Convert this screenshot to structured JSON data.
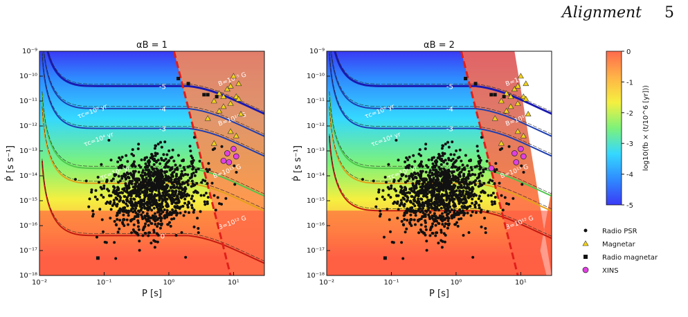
{
  "header": {
    "title": "Alignment",
    "page_number": "5"
  },
  "colors": {
    "radio_psr": "#111111",
    "magnetar": "#f2d21b",
    "radio_magnetar": "#111111",
    "xins": "#e040e0",
    "death_line": "#e0201a"
  },
  "colormap": [
    "#3a3af5",
    "#2f8bff",
    "#35d8ff",
    "#7df27a",
    "#f5f040",
    "#ffb347",
    "#ff6a4d"
  ],
  "colorbar": {
    "label": "log10(fb × (t/10^6 [yr]))",
    "ticks": [
      "0",
      "-1",
      "-2",
      "-3",
      "-4",
      "-5"
    ],
    "range": [
      -5,
      0
    ]
  },
  "legend": {
    "items": [
      {
        "label": "Radio PSR",
        "marker": "circle"
      },
      {
        "label": "Magnetar",
        "marker": "triangle"
      },
      {
        "label": "Radio magnetar",
        "marker": "square"
      },
      {
        "label": "XINS",
        "marker": "circle-large"
      }
    ]
  },
  "chart_data": [
    {
      "type": "heatmap",
      "title": "αB = 1",
      "xlabel": "P [s]",
      "ylabel": "Ṗ [s s⁻¹]",
      "xscale": "log",
      "yscale": "log",
      "xlim": [
        0.01,
        30
      ],
      "ylim": [
        1e-18,
        1e-09
      ],
      "x_ticks": [
        "10⁻²",
        "10⁻¹",
        "10⁰",
        "10¹"
      ],
      "y_ticks": [
        "10⁻¹⁸",
        "10⁻¹⁷",
        "10⁻¹⁶",
        "10⁻¹⁵",
        "10⁻¹⁴",
        "10⁻¹³",
        "10⁻¹²",
        "10⁻¹¹",
        "10⁻¹⁰",
        "10⁻⁹"
      ],
      "contour_levels": [
        {
          "level": "0",
          "p_label": 0.8,
          "pdot_plateau": 4e-17
        },
        {
          "level": "-1",
          "p_label": 0.8,
          "pdot_plateau": 5e-15
        },
        {
          "level": "-2",
          "p_label": 0.8,
          "pdot_plateau": 2e-14
        },
        {
          "level": "-3",
          "p_label": 0.8,
          "pdot_plateau": 8e-13
        },
        {
          "level": "-4",
          "p_label": 0.8,
          "pdot_plateau": 5e-12
        },
        {
          "level": "-5",
          "p_label": 0.8,
          "pdot_plateau": 4e-11
        }
      ],
      "annotations": [
        {
          "text": "τc=10⁶ yr",
          "x": 0.04,
          "y": 2e-12
        },
        {
          "text": "τc=10⁴ yr",
          "x": 0.05,
          "y": 1.5e-13
        },
        {
          "text": "τc=10⁸ yr",
          "x": 0.09,
          "y": 7e-15
        },
        {
          "text": "B=10¹⁵ G",
          "x": 6,
          "y": 4e-11
        },
        {
          "text": "B=10¹⁴ G",
          "x": 6,
          "y": 1e-12
        },
        {
          "text": "B=10¹³ G",
          "x": 5,
          "y": 8e-15
        },
        {
          "text": "B=10¹² G",
          "x": 6,
          "y": 7e-17
        }
      ],
      "magnetars": [
        [
          6,
          2e-11
        ],
        [
          8,
          3e-11
        ],
        [
          10,
          1e-10
        ],
        [
          12,
          5e-11
        ],
        [
          7,
          6e-12
        ],
        [
          9,
          8e-12
        ],
        [
          11,
          1.5e-11
        ],
        [
          5,
          1e-11
        ],
        [
          13,
          3e-12
        ],
        [
          4,
          2e-12
        ],
        [
          9,
          6e-13
        ],
        [
          11,
          4e-13
        ],
        [
          5,
          2e-13
        ],
        [
          7,
          1.5e-11
        ],
        [
          12,
          1.2e-11
        ],
        [
          9,
          4e-11
        ],
        [
          6,
          4e-12
        ]
      ],
      "radio_magnetars": [
        [
          1.4,
          8e-11
        ],
        [
          2,
          5e-11
        ],
        [
          3.5,
          1.8e-11
        ],
        [
          4,
          1.8e-11
        ],
        [
          5.5,
          1.5e-11
        ],
        [
          0.08,
          5e-18
        ],
        [
          1.1,
          2e-14
        ]
      ],
      "xins": [
        [
          8,
          8e-14
        ],
        [
          10,
          1.2e-13
        ],
        [
          11,
          6e-14
        ],
        [
          8.5,
          3.5e-14
        ],
        [
          7,
          4e-14
        ]
      ]
    },
    {
      "type": "heatmap",
      "title": "αB = 2",
      "xlabel": "P [s]",
      "ylabel": "Ṗ [s s⁻¹]",
      "xscale": "log",
      "yscale": "log",
      "xlim": [
        0.01,
        30
      ],
      "ylim": [
        1e-18,
        1e-09
      ],
      "x_ticks": [
        "10⁻²",
        "10⁻¹",
        "10⁰",
        "10¹"
      ],
      "y_ticks": [
        "10⁻¹⁸",
        "10⁻¹⁷",
        "10⁻¹⁶",
        "10⁻¹⁵",
        "10⁻¹⁴",
        "10⁻¹³",
        "10⁻¹²",
        "10⁻¹¹",
        "10⁻¹⁰",
        "10⁻⁹"
      ],
      "contour_levels": [
        {
          "level": "0",
          "p_label": 0.8,
          "pdot_plateau": 4e-16
        },
        {
          "level": "-1",
          "p_label": 0.8,
          "pdot_plateau": 5e-15
        },
        {
          "level": "-2",
          "p_label": 0.8,
          "pdot_plateau": 2e-14
        },
        {
          "level": "-3",
          "p_label": 0.8,
          "pdot_plateau": 8e-13
        },
        {
          "level": "-4",
          "p_label": 0.8,
          "pdot_plateau": 5e-12
        },
        {
          "level": "-5",
          "p_label": 0.8,
          "pdot_plateau": 4e-11
        }
      ],
      "annotations": [
        {
          "text": "τc=10⁶ yr",
          "x": 0.04,
          "y": 2e-12
        },
        {
          "text": "τc=10⁴ yr",
          "x": 0.05,
          "y": 1.5e-13
        },
        {
          "text": "τc=10⁸ yr",
          "x": 0.09,
          "y": 7e-15
        },
        {
          "text": "B=10¹⁵ G",
          "x": 6,
          "y": 4e-11
        },
        {
          "text": "B=10¹⁴ G",
          "x": 6,
          "y": 1e-12
        },
        {
          "text": "B=10¹³ G",
          "x": 5,
          "y": 8e-15
        },
        {
          "text": "B=10¹² G",
          "x": 6,
          "y": 7e-17
        }
      ],
      "magnetars": [
        [
          6,
          2e-11
        ],
        [
          8,
          3e-11
        ],
        [
          10,
          1e-10
        ],
        [
          12,
          5e-11
        ],
        [
          7,
          6e-12
        ],
        [
          9,
          8e-12
        ],
        [
          11,
          1.5e-11
        ],
        [
          5,
          1e-11
        ],
        [
          13,
          3e-12
        ],
        [
          4,
          2e-12
        ],
        [
          9,
          6e-13
        ],
        [
          11,
          4e-13
        ],
        [
          5,
          2e-13
        ],
        [
          7,
          1.5e-11
        ],
        [
          12,
          1.2e-11
        ],
        [
          9,
          4e-11
        ],
        [
          6,
          4e-12
        ]
      ],
      "radio_magnetars": [
        [
          1.4,
          8e-11
        ],
        [
          2,
          5e-11
        ],
        [
          3.5,
          1.8e-11
        ],
        [
          4,
          1.8e-11
        ],
        [
          5.5,
          1.5e-11
        ],
        [
          0.08,
          5e-18
        ],
        [
          1.1,
          2e-14
        ]
      ],
      "xins": [
        [
          8,
          8e-14
        ],
        [
          10,
          1.2e-13
        ],
        [
          11,
          6e-14
        ],
        [
          8.5,
          3.5e-14
        ],
        [
          3.5,
          2e-14
        ]
      ]
    }
  ]
}
